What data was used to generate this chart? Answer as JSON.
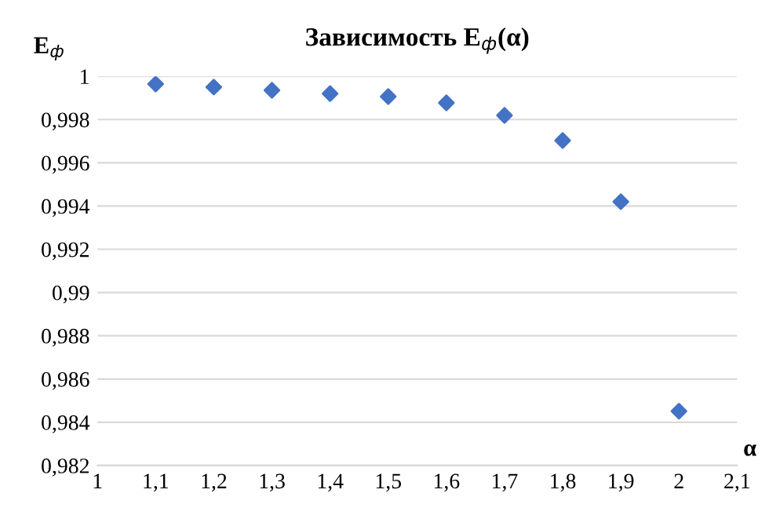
{
  "chart_data": {
    "type": "scatter",
    "title": "Зависимость E$_{ф}$(α)",
    "xlabel": "α",
    "ylabel": "E$_{ф}$",
    "x": [
      1.1,
      1.2,
      1.3,
      1.4,
      1.5,
      1.6,
      1.7,
      1.8,
      1.9,
      2.0
    ],
    "series": [
      {
        "color": "#4472c4",
        "values": [
          0.99964,
          0.9995,
          0.99935,
          0.9992,
          0.99906,
          0.99877,
          0.99819,
          0.99703,
          0.9942,
          0.98451
        ]
      }
    ],
    "xlim": [
      1,
      2.1
    ],
    "ylim": [
      0.982,
      1
    ],
    "xticks": [
      1,
      {
        "value": 1.1,
        "label": "1,1"
      },
      {
        "value": 1.2,
        "label": "1,2"
      },
      {
        "value": 1.3,
        "label": "1,3"
      },
      {
        "value": 1.4,
        "label": "1,4"
      },
      {
        "value": 1.5,
        "label": "1,5"
      },
      {
        "value": 1.6,
        "label": "1,6"
      },
      {
        "value": 1.7,
        "label": "1,7"
      },
      {
        "value": 1.8,
        "label": "1,8"
      },
      {
        "value": 1.9,
        "label": "1,9"
      },
      2,
      {
        "value": 2.1,
        "label": "2,1"
      }
    ],
    "yticks": [
      {
        "value": 0.982,
        "label": "0,982"
      },
      {
        "value": 0.984,
        "label": "0,984"
      },
      {
        "value": 0.986,
        "label": "0,986"
      },
      {
        "value": 0.988,
        "label": "0,988"
      },
      {
        "value": 0.99,
        "label": "0,99"
      },
      {
        "value": 0.992,
        "label": "0,992"
      },
      {
        "value": 0.994,
        "label": "0,994"
      },
      {
        "value": 0.996,
        "label": "0,996"
      },
      {
        "value": 0.998,
        "label": "0,998"
      },
      1
    ],
    "grid": "y",
    "marker": "diamond"
  }
}
